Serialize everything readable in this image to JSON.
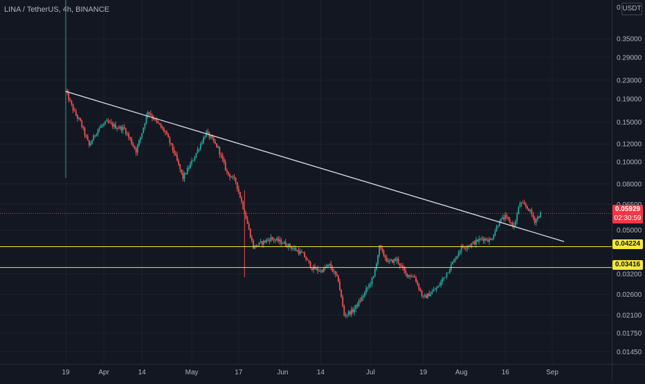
{
  "header": {
    "symbol": "LINA / TetherUS, 4h, BINANCE"
  },
  "axis": {
    "currency": "USDT",
    "top_tick": "0"
  },
  "current": {
    "price": "0.05929",
    "countdown": "02:30:59"
  },
  "levels": [
    {
      "label": "0.04224",
      "value": 0.04224,
      "color": "#f5e83b"
    },
    {
      "label": "0.03416",
      "value": 0.03416,
      "color": "#f5e83b"
    }
  ],
  "colors": {
    "up": "#26a69a",
    "down": "#ef5350",
    "trendline": "#e0e3eb",
    "current": "#f23645",
    "bg": "#131722"
  },
  "chart_data": {
    "type": "candlestick",
    "title": "LINA / TetherUS, 4h, BINANCE",
    "y_scale": "log",
    "ylim": [
      0.0128,
      0.52
    ],
    "y_ticks": [
      {
        "label": "0.35000",
        "value": 0.35
      },
      {
        "label": "0.29000",
        "value": 0.29
      },
      {
        "label": "0.23000",
        "value": 0.23
      },
      {
        "label": "0.19000",
        "value": 0.19
      },
      {
        "label": "0.15000",
        "value": 0.15
      },
      {
        "label": "0.12000",
        "value": 0.12
      },
      {
        "label": "0.10000",
        "value": 0.1
      },
      {
        "label": "0.08000",
        "value": 0.08
      },
      {
        "label": "0.06500",
        "value": 0.065
      },
      {
        "label": "0.05000",
        "value": 0.05
      },
      {
        "label": "0.03200",
        "value": 0.032
      },
      {
        "label": "0.02600",
        "value": 0.026
      },
      {
        "label": "0.02100",
        "value": 0.021
      },
      {
        "label": "0.01750",
        "value": 0.0175
      },
      {
        "label": "0.01450",
        "value": 0.0145
      }
    ],
    "x_ticks": [
      {
        "label": "19",
        "date": "2021-03-19"
      },
      {
        "label": "Apr",
        "date": "2021-04-01"
      },
      {
        "label": "14",
        "date": "2021-04-14"
      },
      {
        "label": "May",
        "date": "2021-05-01"
      },
      {
        "label": "17",
        "date": "2021-05-17"
      },
      {
        "label": "Jun",
        "date": "2021-06-01"
      },
      {
        "label": "14",
        "date": "2021-06-14"
      },
      {
        "label": "Jul",
        "date": "2021-07-01"
      },
      {
        "label": "19",
        "date": "2021-07-19"
      },
      {
        "label": "Aug",
        "date": "2021-08-01"
      },
      {
        "label": "16",
        "date": "2021-08-16"
      },
      {
        "label": "Sep",
        "date": "2021-09-01"
      }
    ],
    "price_path": [
      {
        "date": "2021-03-19",
        "close": 0.205,
        "high": 0.25,
        "low": 0.085
      },
      {
        "date": "2021-03-22",
        "close": 0.165
      },
      {
        "date": "2021-03-24",
        "close": 0.15
      },
      {
        "date": "2021-03-27",
        "close": 0.118
      },
      {
        "date": "2021-03-30",
        "close": 0.14
      },
      {
        "date": "2021-04-02",
        "close": 0.15
      },
      {
        "date": "2021-04-05",
        "close": 0.143
      },
      {
        "date": "2021-04-08",
        "close": 0.14
      },
      {
        "date": "2021-04-12",
        "close": 0.112
      },
      {
        "date": "2021-04-14",
        "close": 0.135
      },
      {
        "date": "2021-04-16",
        "close": 0.168
      },
      {
        "date": "2021-04-19",
        "close": 0.15
      },
      {
        "date": "2021-04-22",
        "close": 0.135
      },
      {
        "date": "2021-04-25",
        "close": 0.11
      },
      {
        "date": "2021-04-28",
        "close": 0.085
      },
      {
        "date": "2021-05-01",
        "close": 0.1
      },
      {
        "date": "2021-05-04",
        "close": 0.12
      },
      {
        "date": "2021-05-06",
        "close": 0.135
      },
      {
        "date": "2021-05-10",
        "close": 0.115
      },
      {
        "date": "2021-05-13",
        "close": 0.09
      },
      {
        "date": "2021-05-16",
        "close": 0.082
      },
      {
        "date": "2021-05-19",
        "close": 0.06,
        "low": 0.031
      },
      {
        "date": "2021-05-22",
        "close": 0.042
      },
      {
        "date": "2021-05-25",
        "close": 0.044
      },
      {
        "date": "2021-05-28",
        "close": 0.046
      },
      {
        "date": "2021-06-01",
        "close": 0.044
      },
      {
        "date": "2021-06-04",
        "close": 0.042
      },
      {
        "date": "2021-06-08",
        "close": 0.039
      },
      {
        "date": "2021-06-11",
        "close": 0.034
      },
      {
        "date": "2021-06-14",
        "close": 0.033
      },
      {
        "date": "2021-06-17",
        "close": 0.035
      },
      {
        "date": "2021-06-20",
        "close": 0.03
      },
      {
        "date": "2021-06-22",
        "close": 0.021
      },
      {
        "date": "2021-06-25",
        "close": 0.022
      },
      {
        "date": "2021-06-28",
        "close": 0.025
      },
      {
        "date": "2021-07-02",
        "close": 0.031
      },
      {
        "date": "2021-07-04",
        "close": 0.042
      },
      {
        "date": "2021-07-07",
        "close": 0.036
      },
      {
        "date": "2021-07-10",
        "close": 0.037
      },
      {
        "date": "2021-07-13",
        "close": 0.032
      },
      {
        "date": "2021-07-16",
        "close": 0.031
      },
      {
        "date": "2021-07-19",
        "close": 0.025
      },
      {
        "date": "2021-07-21",
        "close": 0.026
      },
      {
        "date": "2021-07-24",
        "close": 0.028
      },
      {
        "date": "2021-07-28",
        "close": 0.034
      },
      {
        "date": "2021-08-01",
        "close": 0.042
      },
      {
        "date": "2021-08-04",
        "close": 0.043
      },
      {
        "date": "2021-08-08",
        "close": 0.046
      },
      {
        "date": "2021-08-11",
        "close": 0.045
      },
      {
        "date": "2021-08-14",
        "close": 0.055
      },
      {
        "date": "2021-08-16",
        "close": 0.057
      },
      {
        "date": "2021-08-19",
        "close": 0.052
      },
      {
        "date": "2021-08-21",
        "close": 0.066
      },
      {
        "date": "2021-08-24",
        "close": 0.062
      },
      {
        "date": "2021-08-26",
        "close": 0.055
      },
      {
        "date": "2021-08-28",
        "close": 0.059
      }
    ],
    "trendline": {
      "start": {
        "date": "2021-03-19",
        "value": 0.205
      },
      "end": {
        "date": "2021-09-05",
        "value": 0.0445
      }
    }
  }
}
